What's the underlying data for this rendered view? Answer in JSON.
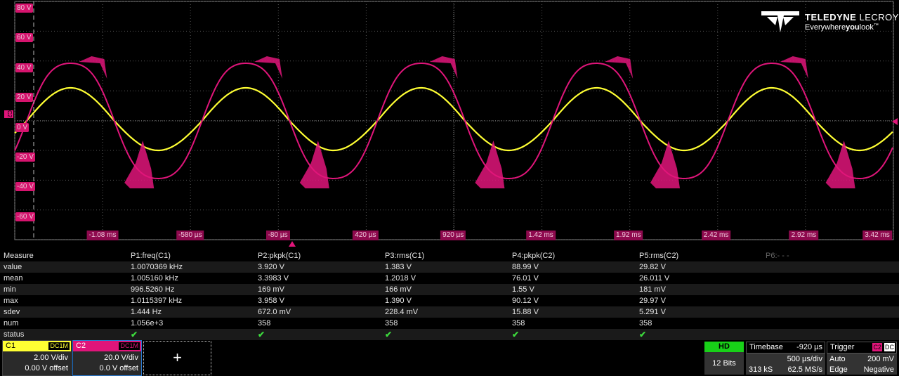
{
  "logo": {
    "brand_a": "TELEDYNE",
    "brand_b": "LECROY",
    "tag_a": "Everywhere",
    "tag_b": "you",
    "tag_c": "look",
    "tm": "™"
  },
  "grid": {
    "y_labels": [
      "80 V",
      "60 V",
      "40 V",
      "20 V",
      "0 V",
      "-20 V",
      "-40 V",
      "-60 V"
    ],
    "x_labels": [
      "-1.08 ms",
      "-580 µs",
      "-80 µs",
      "420 µs",
      "920 µs",
      "1.42 ms",
      "1.92 ms",
      "2.42 ms",
      "2.92 ms",
      "3.42 ms"
    ],
    "trigger_marker": "C2"
  },
  "colors": {
    "c1": "#ffff33",
    "c2": "#e0157a",
    "hd": "#18d018"
  },
  "measure": {
    "header": [
      "Measure",
      "P1:freq(C1)",
      "P2:pkpk(C1)",
      "P3:rms(C1)",
      "P4:pkpk(C2)",
      "P5:rms(C2)",
      "P6:- - -"
    ],
    "rows": [
      [
        "value",
        "1.0070369 kHz",
        "3.920 V",
        "1.383 V",
        "88.99 V",
        "29.82 V"
      ],
      [
        "mean",
        "1.005160 kHz",
        "3.3983 V",
        "1.2018 V",
        "76.01 V",
        "26.011 V"
      ],
      [
        "min",
        "996.5260 Hz",
        "169 mV",
        "166 mV",
        "1.55 V",
        "181 mV"
      ],
      [
        "max",
        "1.0115397 kHz",
        "3.958 V",
        "1.390 V",
        "90.12 V",
        "29.97 V"
      ],
      [
        "sdev",
        "1.444 Hz",
        "672.0 mV",
        "228.4 mV",
        "15.88 V",
        "5.291 V"
      ],
      [
        "num",
        "1.056e+3",
        "358",
        "358",
        "358",
        "358"
      ]
    ],
    "status_label": "status",
    "status_icon": "check-icon"
  },
  "c1": {
    "name": "C1",
    "coupling": "DC1M",
    "vdiv": "2.00 V/div",
    "offset": "0.00 V offset"
  },
  "c2": {
    "name": "C2",
    "coupling": "DC1M",
    "vdiv": "20.0 V/div",
    "offset": "0.0 V offset"
  },
  "add_channel": "+",
  "hd": {
    "label": "HD",
    "bits": "12 Bits"
  },
  "timebase": {
    "title": "Timebase",
    "delay": "-920 µs",
    "tdiv": "500 µs/div",
    "samples": "313 kS",
    "rate": "62.5 MS/s"
  },
  "trigger": {
    "title": "Trigger",
    "source": "C2",
    "coupling": "DC",
    "mode": "Auto",
    "level": "200 mV",
    "type": "Edge",
    "slope": "Negative"
  }
}
